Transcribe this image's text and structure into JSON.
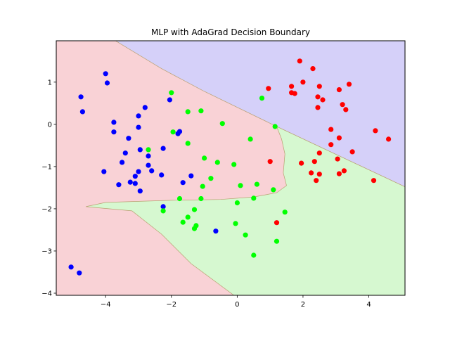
{
  "chart_data": {
    "type": "scatter",
    "title": "MLP with AdaGrad Decision Boundary",
    "xlabel": "",
    "ylabel": "",
    "xlim": [
      -5.5,
      5.1
    ],
    "ylim": [
      -4.05,
      1.98
    ],
    "x_ticks": [
      -4,
      -2,
      0,
      2,
      4
    ],
    "y_ticks": [
      1,
      0,
      -1,
      -2,
      -3,
      -4
    ],
    "x_tick_labels": [
      "−4",
      "−2",
      "0",
      "2",
      "4"
    ],
    "y_tick_labels": [
      "1",
      "0",
      "−1",
      "−2",
      "−3",
      "−4"
    ],
    "grid": false,
    "legend": "none",
    "regions": [
      {
        "class": "blue",
        "color": "#d5d0f9",
        "polygon": [
          [
            -3.7,
            1.98
          ],
          [
            5.1,
            1.98
          ],
          [
            5.1,
            -1.48
          ],
          [
            1.2,
            -0.05
          ],
          [
            -1.0,
            0.78
          ],
          [
            -2.3,
            1.32
          ]
        ]
      },
      {
        "class": "green",
        "color": "#d6f8d0",
        "polygon": [
          [
            5.1,
            -1.48
          ],
          [
            5.1,
            -4.05
          ],
          [
            -0.1,
            -4.05
          ],
          [
            -1.4,
            -3.3
          ],
          [
            -2.3,
            -2.6
          ],
          [
            -3.2,
            -2.05
          ],
          [
            -4.6,
            -1.95
          ],
          [
            -4.0,
            -1.85
          ],
          [
            -2.0,
            -1.8
          ],
          [
            -0.5,
            -1.78
          ],
          [
            0.5,
            -1.72
          ],
          [
            1.2,
            -1.62
          ],
          [
            1.5,
            -1.45
          ],
          [
            1.4,
            -1.15
          ],
          [
            1.45,
            -0.7
          ],
          [
            1.35,
            -0.35
          ],
          [
            1.2,
            -0.05
          ]
        ]
      }
    ],
    "background_color": "#f9d2d6",
    "series": [
      {
        "color": "#0000ff",
        "points": [
          [
            -4.0,
            1.2
          ],
          [
            -3.95,
            0.98
          ],
          [
            -4.75,
            0.65
          ],
          [
            -4.7,
            0.3
          ],
          [
            -3.75,
            0.05
          ],
          [
            -3.75,
            -0.18
          ],
          [
            -3.0,
            0.2
          ],
          [
            -3.0,
            -0.07
          ],
          [
            -2.8,
            0.4
          ],
          [
            -3.3,
            -0.33
          ],
          [
            -3.4,
            -0.68
          ],
          [
            -3.5,
            -0.9
          ],
          [
            -2.95,
            -0.6
          ],
          [
            -2.7,
            -0.75
          ],
          [
            -2.7,
            -0.97
          ],
          [
            -2.6,
            -1.1
          ],
          [
            -3.0,
            -1.12
          ],
          [
            -3.1,
            -1.23
          ],
          [
            -4.05,
            -1.12
          ],
          [
            -3.6,
            -1.43
          ],
          [
            -3.25,
            -1.37
          ],
          [
            -3.1,
            -1.4
          ],
          [
            -2.95,
            -1.58
          ],
          [
            -2.3,
            -1.2
          ],
          [
            -2.25,
            -0.57
          ],
          [
            -2.05,
            0.58
          ],
          [
            -1.8,
            -0.22
          ],
          [
            -1.75,
            -0.17
          ],
          [
            -1.4,
            -1.22
          ],
          [
            -1.65,
            -1.38
          ],
          [
            -2.25,
            -1.95
          ],
          [
            -0.65,
            -2.53
          ],
          [
            -5.05,
            -3.38
          ],
          [
            -4.8,
            -3.52
          ]
        ]
      },
      {
        "color": "#00ff00",
        "points": [
          [
            -2.0,
            0.75
          ],
          [
            -1.5,
            0.3
          ],
          [
            -1.1,
            0.32
          ],
          [
            -0.45,
            0.02
          ],
          [
            -1.95,
            -0.18
          ],
          [
            -1.5,
            -0.45
          ],
          [
            -2.7,
            -0.6
          ],
          [
            -1.0,
            -0.8
          ],
          [
            -0.6,
            -0.9
          ],
          [
            -0.1,
            -0.95
          ],
          [
            0.4,
            -0.35
          ],
          [
            0.75,
            0.62
          ],
          [
            1.15,
            -0.05
          ],
          [
            -0.8,
            -1.28
          ],
          [
            -1.05,
            -1.47
          ],
          [
            0.1,
            -1.45
          ],
          [
            0.6,
            -1.42
          ],
          [
            1.1,
            -1.55
          ],
          [
            -1.75,
            -1.76
          ],
          [
            -1.1,
            -1.76
          ],
          [
            0.0,
            -1.86
          ],
          [
            0.5,
            -1.75
          ],
          [
            -1.3,
            -2.02
          ],
          [
            -2.25,
            -2.05
          ],
          [
            -1.5,
            -2.2
          ],
          [
            -1.65,
            -2.32
          ],
          [
            -1.25,
            -2.4
          ],
          [
            -1.3,
            -2.47
          ],
          [
            -0.05,
            -2.35
          ],
          [
            1.45,
            -2.08
          ],
          [
            0.25,
            -2.62
          ],
          [
            1.2,
            -2.77
          ],
          [
            0.5,
            -3.1
          ]
        ]
      },
      {
        "color": "#ff0000",
        "points": [
          [
            1.9,
            1.5
          ],
          [
            2.3,
            1.32
          ],
          [
            2.0,
            1.0
          ],
          [
            1.65,
            0.9
          ],
          [
            1.65,
            0.75
          ],
          [
            1.75,
            0.73
          ],
          [
            2.5,
            0.9
          ],
          [
            2.45,
            0.65
          ],
          [
            2.6,
            0.58
          ],
          [
            3.1,
            0.82
          ],
          [
            3.4,
            0.95
          ],
          [
            3.2,
            0.47
          ],
          [
            3.3,
            0.35
          ],
          [
            2.45,
            0.4
          ],
          [
            0.95,
            0.85
          ],
          [
            2.85,
            -0.12
          ],
          [
            3.1,
            -0.32
          ],
          [
            2.85,
            -0.48
          ],
          [
            4.2,
            -0.15
          ],
          [
            4.6,
            -0.35
          ],
          [
            3.5,
            -0.65
          ],
          [
            2.5,
            -0.68
          ],
          [
            3.05,
            -0.82
          ],
          [
            2.35,
            -0.88
          ],
          [
            1.95,
            -0.92
          ],
          [
            1.0,
            -0.88
          ],
          [
            2.25,
            -1.15
          ],
          [
            2.5,
            -1.18
          ],
          [
            3.25,
            -1.1
          ],
          [
            3.1,
            -1.17
          ],
          [
            2.4,
            -1.33
          ],
          [
            4.15,
            -1.33
          ],
          [
            1.2,
            -2.33
          ]
        ]
      }
    ]
  }
}
